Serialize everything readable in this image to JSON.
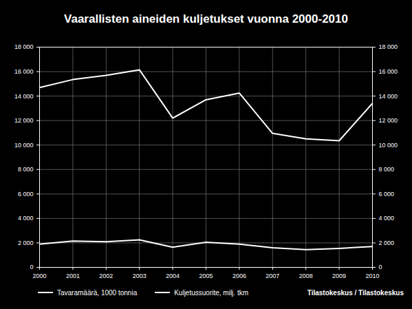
{
  "chart_data": {
    "type": "line",
    "title": "Vaarallisten aineiden kuljetukset vuonna 2000-2010",
    "caption": "Tilastokeskus / Tilastokeskus",
    "x": [
      2000,
      2001,
      2002,
      2003,
      2004,
      2005,
      2006,
      2007,
      2008,
      2009,
      2010
    ],
    "xlim": [
      2000,
      2010
    ],
    "xticks": [
      2000,
      2001,
      2002,
      2003,
      2004,
      2005,
      2006,
      2007,
      2008,
      2009,
      2010
    ],
    "ylim": [
      0,
      18000
    ],
    "yticks": [
      0,
      {
        "value": 2000,
        "label": "2 000"
      },
      {
        "value": 4000,
        "label": "4 000"
      },
      {
        "value": 6000,
        "label": "6 000"
      },
      {
        "value": 8000,
        "label": "8 000"
      },
      {
        "value": 10000,
        "label": "10 000"
      },
      {
        "value": 12000,
        "label": "12 000"
      },
      {
        "value": 14000,
        "label": "14 000"
      },
      {
        "value": 16000,
        "label": "16 000"
      },
      {
        "value": 18000,
        "label": "18 000"
      }
    ],
    "y2lim": [
      0,
      18000
    ],
    "y2ticks": [
      0,
      {
        "value": 2000,
        "label": "2 000"
      },
      {
        "value": 4000,
        "label": "4 000"
      },
      {
        "value": 6000,
        "label": "6 000"
      },
      {
        "value": 8000,
        "label": "8 000"
      },
      {
        "value": 10000,
        "label": "10 000"
      },
      {
        "value": 12000,
        "label": "12 000"
      },
      {
        "value": 14000,
        "label": "14 000"
      },
      {
        "value": 16000,
        "label": "16 000"
      },
      {
        "value": 18000,
        "label": "18 000"
      }
    ],
    "grid": true,
    "legend": "bottom",
    "series": [
      {
        "name": "Tavaramäärä, 1000 tonnia",
        "color": "#ffffff",
        "values": [
          14700,
          15350,
          15700,
          16150,
          12200,
          13700,
          14250,
          10950,
          10500,
          10350,
          13400
        ]
      },
      {
        "name": "Kuljetussuorite, milj. tkm",
        "color": "#ffffff",
        "axis": "y2",
        "values": [
          1900,
          2150,
          2100,
          2250,
          1650,
          2050,
          1900,
          1600,
          1450,
          1550,
          1700
        ]
      }
    ]
  }
}
